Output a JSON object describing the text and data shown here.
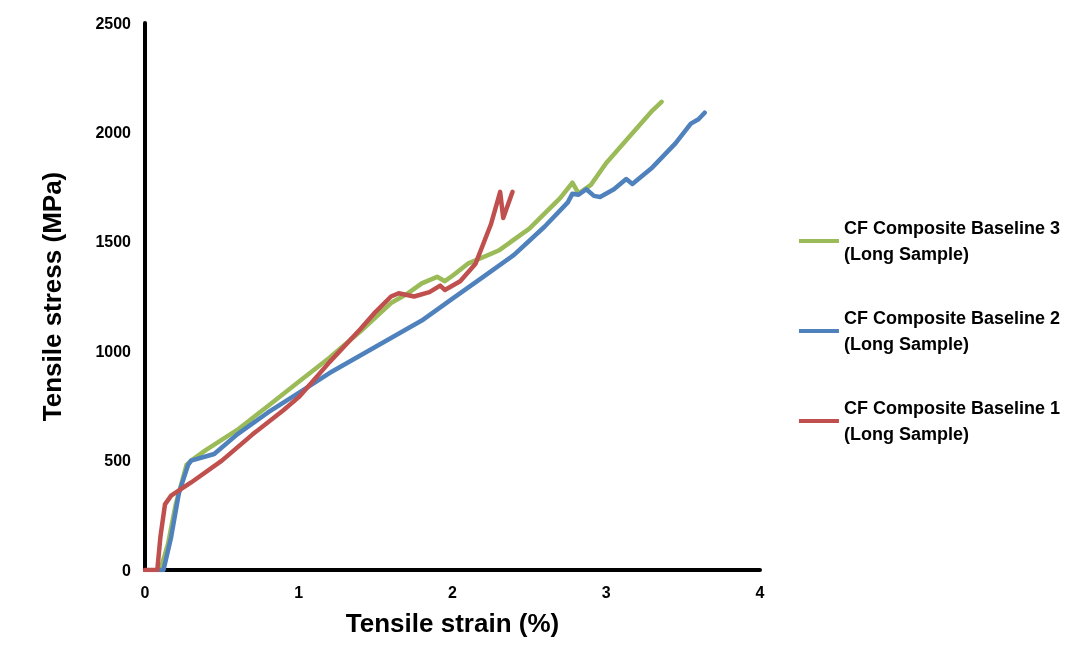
{
  "chart_data": {
    "type": "line",
    "xlabel": "Tensile strain (%)",
    "ylabel": "Tensile stress (MPa)",
    "xlim": [
      0,
      4
    ],
    "xticks": [
      0,
      1,
      2,
      3,
      4
    ],
    "ylim": [
      0,
      2500
    ],
    "yticks": [
      0,
      500,
      1000,
      1500,
      2000,
      2500
    ],
    "grid": false,
    "legend": "right",
    "marker": "none",
    "line_style": "solid",
    "series": [
      {
        "name": "CF Composite Baseline 3\n(Long Sample)",
        "color": "#9bbb59",
        "x": [
          0.1,
          0.15,
          0.2,
          0.27,
          0.3,
          0.4,
          0.6,
          0.8,
          1.0,
          1.2,
          1.4,
          1.6,
          1.7,
          1.8,
          1.9,
          1.95,
          2.0,
          2.1,
          2.3,
          2.5,
          2.6,
          2.7,
          2.78,
          2.82,
          2.9,
          3.0,
          3.1,
          3.2,
          3.3,
          3.36
        ],
        "values": [
          0,
          120,
          300,
          480,
          500,
          550,
          640,
          750,
          860,
          970,
          1090,
          1220,
          1260,
          1310,
          1340,
          1320,
          1345,
          1400,
          1460,
          1560,
          1630,
          1700,
          1770,
          1720,
          1760,
          1860,
          1940,
          2020,
          2100,
          2140
        ]
      },
      {
        "name": "CF Composite Baseline 2\n(Long Sample)",
        "color": "#4f81bd",
        "x": [
          0.08,
          0.12,
          0.17,
          0.22,
          0.28,
          0.3,
          0.45,
          0.6,
          0.8,
          1.0,
          1.2,
          1.4,
          1.6,
          1.8,
          2.0,
          2.2,
          2.4,
          2.6,
          2.75,
          2.78,
          2.82,
          2.87,
          2.92,
          2.96,
          3.05,
          3.13,
          3.17,
          3.3,
          3.45,
          3.55,
          3.6,
          3.64
        ],
        "values": [
          0,
          0,
          150,
          350,
          480,
          500,
          530,
          620,
          720,
          810,
          900,
          980,
          1060,
          1140,
          1240,
          1340,
          1440,
          1570,
          1680,
          1720,
          1715,
          1740,
          1710,
          1705,
          1740,
          1787,
          1764,
          1840,
          1950,
          2040,
          2060,
          2090
        ]
      },
      {
        "name": "CF Composite Baseline 1\n(Long Sample)",
        "color": "#c0504d",
        "x": [
          0,
          0.08,
          0.1,
          0.13,
          0.17,
          0.3,
          0.5,
          0.7,
          0.9,
          1.0,
          1.1,
          1.2,
          1.4,
          1.5,
          1.6,
          1.65,
          1.75,
          1.85,
          1.92,
          1.95,
          2.05,
          2.15,
          2.25,
          2.31,
          2.33,
          2.39
        ],
        "values": [
          0,
          0,
          150,
          300,
          340,
          400,
          500,
          620,
          730,
          790,
          870,
          950,
          1100,
          1180,
          1250,
          1265,
          1250,
          1270,
          1300,
          1280,
          1320,
          1400,
          1580,
          1728,
          1609,
          1728
        ]
      }
    ]
  }
}
